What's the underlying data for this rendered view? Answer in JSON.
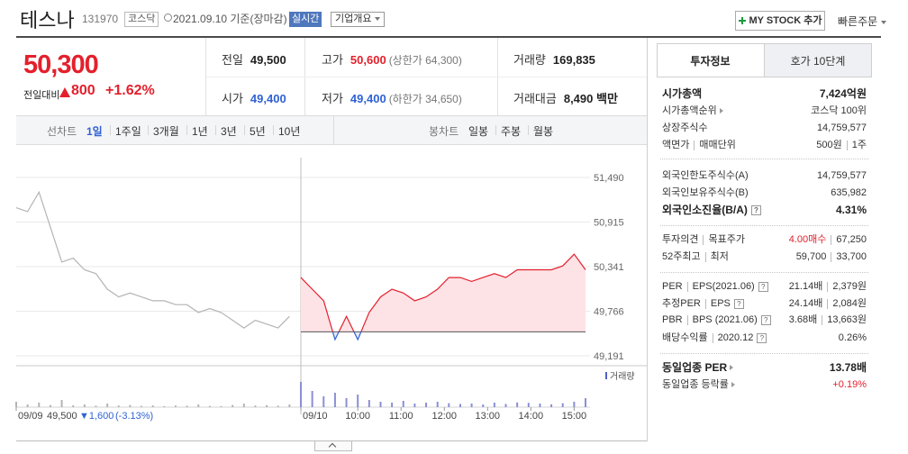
{
  "header": {
    "name": "테스나",
    "code": "131970",
    "market": "코스닥",
    "date": "2021.09.10 기준(장마감)",
    "realtime": "실시간",
    "company_info": "기업개요",
    "my_stock": "MY STOCK 추가",
    "quick_order": "빠른주문"
  },
  "price": {
    "current": "50,300",
    "change_label": "전일대비",
    "change": "800",
    "change_pct": "+1.62%"
  },
  "summary": {
    "prev_close": {
      "label": "전일",
      "value": "49,500"
    },
    "high": {
      "label": "고가",
      "value": "50,600",
      "note": "(상한가 64,300)"
    },
    "volume": {
      "label": "거래량",
      "value": "169,835"
    },
    "open": {
      "label": "시가",
      "value": "49,400"
    },
    "low": {
      "label": "저가",
      "value": "49,400",
      "note": "(하한가 34,650)"
    },
    "amount": {
      "label": "거래대금",
      "value": "8,490 백만"
    }
  },
  "tabs": {
    "line_label": "선차트",
    "line": [
      "1일",
      "1주일",
      "3개월",
      "1년",
      "3년",
      "5년",
      "10년"
    ],
    "candle_label": "봉차트",
    "candle": [
      "일봉",
      "주봉",
      "월봉"
    ]
  },
  "chart_data": {
    "type": "line",
    "x": [
      0,
      2,
      4,
      6,
      8,
      10,
      12,
      14,
      16,
      18,
      20,
      22,
      24,
      26,
      28,
      30,
      32,
      34,
      36,
      38,
      40,
      42,
      44,
      46,
      48,
      50,
      52,
      54,
      56,
      58,
      60,
      62,
      64,
      66,
      68,
      70,
      72,
      74,
      76,
      78,
      80,
      82,
      84,
      86,
      88,
      90,
      92,
      94,
      96,
      98,
      100
    ],
    "xlim": [
      0,
      100
    ],
    "xticks": [
      {
        "value": 0,
        "label": "09/09"
      },
      {
        "value": 50,
        "label": "09/10"
      },
      {
        "value": 60,
        "label": "10:00"
      },
      {
        "value": 67.6,
        "label": "11:00"
      },
      {
        "value": 75.2,
        "label": "12:00"
      },
      {
        "value": 82.8,
        "label": "13:00"
      },
      {
        "value": 90.4,
        "label": "14:00"
      },
      {
        "value": 98,
        "label": "15:00"
      }
    ],
    "ylim": [
      49075,
      51687
    ],
    "yticks": [
      {
        "value": 49191,
        "label": "49,191"
      },
      {
        "value": 49766,
        "label": "49,766"
      },
      {
        "value": 50341,
        "label": "50,341"
      },
      {
        "value": 50915,
        "label": "50,915"
      },
      {
        "value": 51490,
        "label": "51,490"
      }
    ],
    "grid": true,
    "baseline": 49500,
    "volume_label": "거래량",
    "volume_ylim": [
      0,
      20000
    ],
    "prev_day": {
      "close": "49,500",
      "change": "▼1,600",
      "change_pct": "(-3.13%)"
    },
    "series": [
      {
        "color": "#b4b4b4",
        "volume_color": "#b4b4b4",
        "values": [
          51100,
          51050,
          51300,
          50850,
          50400,
          50450,
          50300,
          50250,
          50050,
          49950,
          50000,
          49950,
          49900,
          49900,
          49850,
          49850,
          49750,
          49800,
          49750,
          49650,
          49550,
          49650,
          49600,
          49550,
          49700,
          null,
          null,
          null,
          null,
          null,
          null,
          null,
          null,
          null,
          null,
          null,
          null,
          null,
          null,
          null,
          null,
          null,
          null,
          null,
          null,
          null,
          null,
          null,
          null,
          null,
          null
        ],
        "volume": [
          3000,
          1500,
          2500,
          1200,
          4000,
          1000,
          1500,
          800,
          2000,
          900,
          1200,
          700,
          1000,
          600,
          900,
          800,
          1500,
          700,
          600,
          1200,
          2000,
          900,
          1100,
          800,
          1500,
          null,
          null,
          null,
          null,
          null,
          null,
          null,
          null,
          null,
          null,
          null,
          null,
          null,
          null,
          null,
          null,
          null,
          null,
          null,
          null,
          null,
          null,
          null,
          null,
          null,
          null
        ]
      },
      {
        "color": "#e4202c",
        "down_color": "#2f62d3",
        "fill": "#fde3e6",
        "down_fill": "#e3eafa",
        "volume_color": "#8a8fd6",
        "values": [
          null,
          null,
          null,
          null,
          null,
          null,
          null,
          null,
          null,
          null,
          null,
          null,
          null,
          null,
          null,
          null,
          null,
          null,
          null,
          null,
          null,
          null,
          null,
          null,
          null,
          50200,
          50050,
          49900,
          49400,
          49700,
          49400,
          49750,
          49950,
          50050,
          50000,
          49900,
          49950,
          50050,
          50200,
          50200,
          50150,
          50200,
          50250,
          50200,
          50300,
          50300,
          50300,
          50300,
          50350,
          50500,
          50300
        ],
        "volume": [
          null,
          null,
          null,
          null,
          null,
          null,
          null,
          null,
          null,
          null,
          null,
          null,
          null,
          null,
          null,
          null,
          null,
          null,
          null,
          null,
          null,
          null,
          null,
          null,
          null,
          14000,
          9000,
          6000,
          8000,
          5000,
          7000,
          4000,
          3000,
          2500,
          3500,
          2000,
          2500,
          3000,
          2200,
          1800,
          2000,
          1500,
          2500,
          1800,
          2600,
          2400,
          2000,
          1600,
          2200,
          3000,
          5000
        ]
      }
    ]
  },
  "investment": {
    "tabs": [
      "투자정보",
      "호가 10단계"
    ],
    "rows": [
      {
        "labels": [
          "시가총액"
        ],
        "values": [
          "7,424억원"
        ]
      },
      {
        "labels": [
          "시가총액순위"
        ],
        "values": [
          "코스닥 100위"
        ]
      },
      {
        "labels": [
          "상장주식수"
        ],
        "values": [
          "14,759,577"
        ]
      },
      {
        "labels": [
          "액면가",
          "매매단위"
        ],
        "values": [
          "500원",
          "1주"
        ]
      },
      {
        "labels": [
          "외국인한도주식수(A)"
        ],
        "values": [
          "14,759,577"
        ]
      },
      {
        "labels": [
          "외국인보유주식수(B)"
        ],
        "values": [
          "635,982"
        ]
      },
      {
        "labels": [
          "외국인소진율(B/A)"
        ],
        "values": [
          "4.31%"
        ]
      },
      {
        "labels": [
          "투자의견",
          "목표주가"
        ],
        "values": [
          "4.00매수",
          "67,250"
        ]
      },
      {
        "labels": [
          "52주최고",
          "최저"
        ],
        "values": [
          "59,700",
          "33,700"
        ]
      },
      {
        "labels": [
          "PER",
          "EPS(2021.06)"
        ],
        "values": [
          "21.14배",
          "2,379원"
        ]
      },
      {
        "labels": [
          "추정PER",
          "EPS"
        ],
        "values": [
          "24.14배",
          "2,084원"
        ]
      },
      {
        "labels": [
          "PBR",
          "BPS (2021.06)"
        ],
        "values": [
          "3.68배",
          "13,663원"
        ]
      },
      {
        "labels": [
          "배당수익률",
          "2020.12"
        ],
        "values": [
          "0.26%"
        ]
      },
      {
        "labels": [
          "동일업종 PER"
        ],
        "values": [
          "13.78배"
        ]
      },
      {
        "labels": [
          "동일업종 등락률"
        ],
        "values": [
          "+0.19%"
        ]
      }
    ]
  }
}
